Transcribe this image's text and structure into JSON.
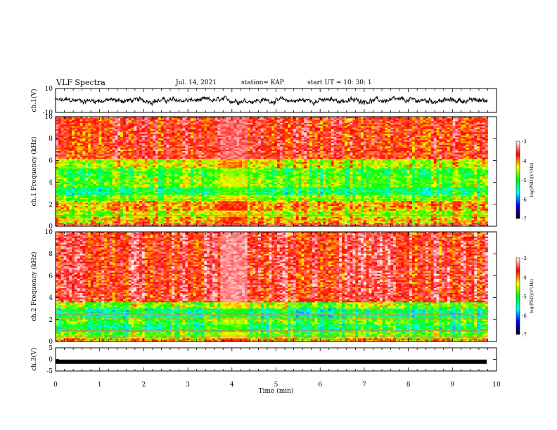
{
  "header": {
    "title": "VLF Spectra",
    "date": "Jul. 14, 2021",
    "station": "station= KAP",
    "start": "start UT = 10: 30: 1"
  },
  "colorbar": {
    "label": "log(PSD)(V²/Hz)",
    "ticks": [
      "-3",
      "-4",
      "-5",
      "-6",
      "-7"
    ],
    "stops": [
      "#ffffff",
      "#ff0000",
      "#ffff00",
      "#00ff00",
      "#00ffff",
      "#0000ff",
      "#000000"
    ]
  },
  "chart_data": [
    {
      "type": "line",
      "name": "ch1-waveform",
      "ylabel": "ch.1(V)",
      "ylim": [
        -10,
        10
      ],
      "yticks": [
        "10",
        "-10"
      ],
      "xlim": [
        0,
        10
      ],
      "mean": 0,
      "amplitude_approx": 4,
      "color": "#000000"
    },
    {
      "type": "heatmap",
      "name": "ch1-spectrogram",
      "ylabel": "ch.1 Frequency (kHz)",
      "ylim": [
        0,
        10
      ],
      "yticks": [
        "0",
        "2",
        "4",
        "6",
        "8",
        "10"
      ],
      "xlim": [
        0,
        10
      ],
      "data_end_min": 9.8,
      "colorbar_range": [
        -7,
        -3
      ],
      "bands": [
        {
          "f_range": [
            0,
            0.3
          ],
          "log_psd": -4.0
        },
        {
          "f_range": [
            0.3,
            0.9
          ],
          "log_psd": -4.3
        },
        {
          "f_range": [
            0.9,
            1.4
          ],
          "log_psd": -4.6
        },
        {
          "f_range": [
            1.4,
            2.3
          ],
          "log_psd": -4.2
        },
        {
          "f_range": [
            2.3,
            2.9
          ],
          "log_psd": -4.7
        },
        {
          "f_range": [
            2.9,
            3.6
          ],
          "log_psd": -5.2
        },
        {
          "f_range": [
            3.6,
            4.6
          ],
          "log_psd": -4.8
        },
        {
          "f_range": [
            4.6,
            5.3
          ],
          "log_psd": -5.0
        },
        {
          "f_range": [
            5.3,
            6.2
          ],
          "log_psd": -4.5
        },
        {
          "f_range": [
            6.2,
            10.0
          ],
          "log_psd": -3.8
        }
      ]
    },
    {
      "type": "heatmap",
      "name": "ch2-spectrogram",
      "ylabel": "ch.2 Frequency (kHz)",
      "ylim": [
        0,
        10
      ],
      "yticks": [
        "0",
        "2",
        "4",
        "6",
        "8",
        "10"
      ],
      "xlim": [
        0,
        10
      ],
      "data_end_min": 9.8,
      "colorbar_range": [
        -7,
        -3
      ],
      "bands": [
        {
          "f_range": [
            0,
            0.3
          ],
          "log_psd": -4.2
        },
        {
          "f_range": [
            0.3,
            0.9
          ],
          "log_psd": -4.8
        },
        {
          "f_range": [
            0.9,
            1.6
          ],
          "log_psd": -5.2
        },
        {
          "f_range": [
            1.6,
            2.1
          ],
          "log_psd": -4.9
        },
        {
          "f_range": [
            2.1,
            3.0
          ],
          "log_psd": -5.3
        },
        {
          "f_range": [
            3.0,
            3.6
          ],
          "log_psd": -4.7
        },
        {
          "f_range": [
            3.6,
            10.0
          ],
          "log_psd": -3.7
        }
      ]
    },
    {
      "type": "line",
      "name": "ch3-waveform",
      "ylabel": "ch.3(V)",
      "ylim": [
        -5,
        5
      ],
      "yticks": [
        "5",
        "0",
        "-5"
      ],
      "xlim": [
        0,
        10
      ],
      "mean": -1,
      "amplitude_approx": 0.3,
      "color": "#000000",
      "xlabel": "Time (min)",
      "xticks": [
        "0",
        "1",
        "2",
        "3",
        "4",
        "5",
        "6",
        "7",
        "8",
        "9",
        "10"
      ]
    }
  ]
}
